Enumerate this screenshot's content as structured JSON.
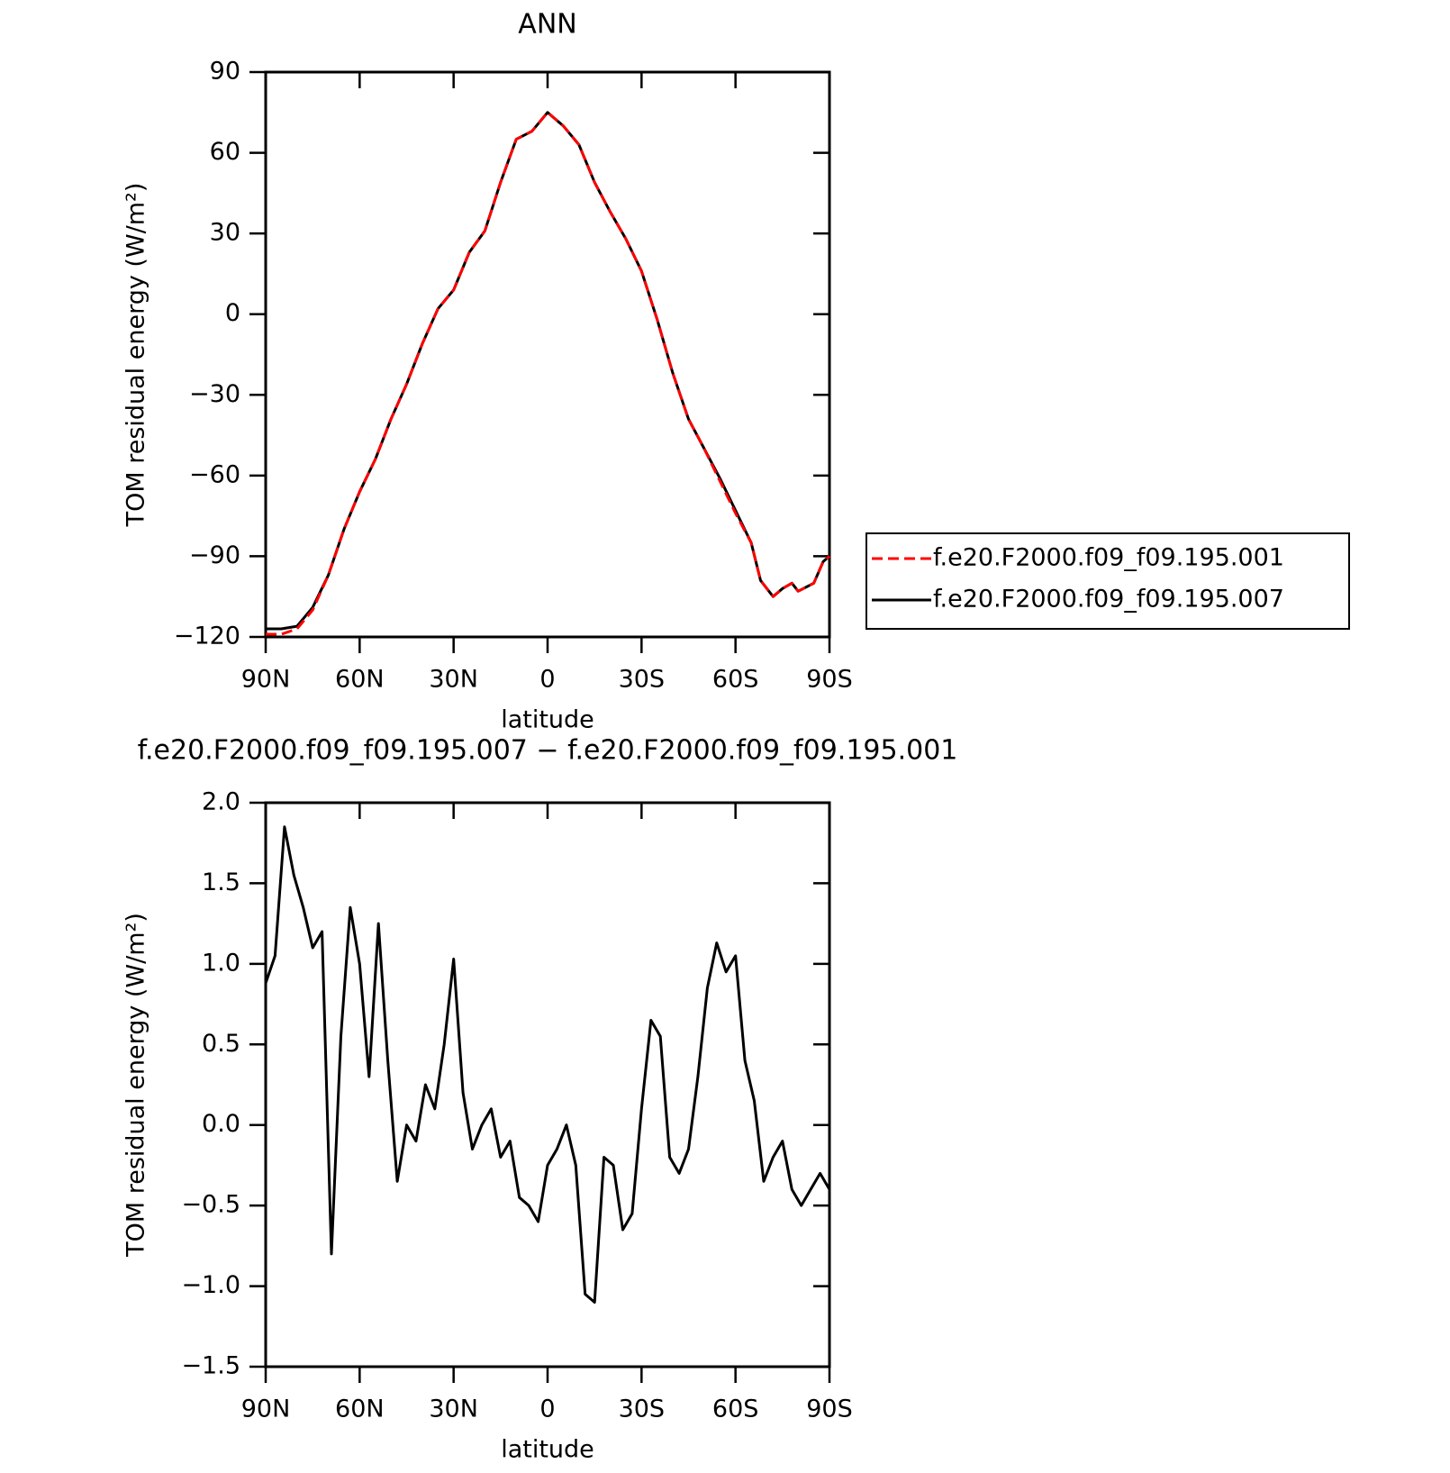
{
  "chart_data": [
    {
      "type": "line",
      "title": "ANN",
      "x_label": "latitude",
      "y_label": "TOM residual energy (W/m²)",
      "x": [
        90,
        85,
        80,
        75,
        70,
        65,
        60,
        55,
        50,
        45,
        40,
        35,
        30,
        25,
        20,
        15,
        10,
        5,
        0,
        -5,
        -10,
        -15,
        -20,
        -25,
        -30,
        -35,
        -40,
        -45,
        -50,
        -55,
        -60,
        -65,
        -68,
        -72,
        -75,
        -78,
        -80,
        -85,
        -88,
        -90
      ],
      "series": [
        {
          "name": "f.e20.F2000.f09_f09.195.001",
          "color": "#ff0000",
          "linestyle": "dashed",
          "values": [
            -119,
            -119,
            -117,
            -110,
            -97,
            -80,
            -66,
            -54,
            -39,
            -26,
            -11,
            2,
            9,
            23,
            31,
            49,
            65,
            68,
            75,
            70,
            63,
            49,
            38,
            28,
            16,
            -2,
            -22,
            -39,
            -50,
            -62,
            -74,
            -85,
            -99,
            -105,
            -102,
            -100,
            -103,
            -100,
            -92,
            -90
          ]
        },
        {
          "name": "f.e20.F2000.f09_f09.195.007",
          "color": "#000000",
          "linestyle": "solid",
          "values": [
            -117,
            -117,
            -116,
            -109,
            -97,
            -80,
            -66,
            -54,
            -39,
            -26,
            -11,
            2,
            9,
            23,
            31,
            49,
            65,
            68,
            75,
            70,
            63,
            49,
            38,
            28,
            16,
            -2,
            -22,
            -39,
            -50,
            -61,
            -73,
            -85,
            -99,
            -105,
            -102,
            -100,
            -103,
            -100,
            -92,
            -90
          ]
        }
      ],
      "xlim": [
        90,
        -90
      ],
      "xticks": [
        {
          "value": 90,
          "label": "90N"
        },
        {
          "value": 60,
          "label": "60N"
        },
        {
          "value": 30,
          "label": "30N"
        },
        0,
        {
          "value": -30,
          "label": "30S"
        },
        {
          "value": -60,
          "label": "60S"
        },
        {
          "value": -90,
          "label": "90S"
        }
      ],
      "ylim": [
        -120,
        90
      ],
      "yticks": [
        {
          "value": -120,
          "label": "−120"
        },
        {
          "value": -90,
          "label": "−90"
        },
        {
          "value": -60,
          "label": "−60"
        },
        {
          "value": -30,
          "label": "−30"
        },
        0,
        30,
        60,
        90
      ],
      "legend": "right"
    },
    {
      "type": "line",
      "title": "f.e20.F2000.f09_f09.195.007 − f.e20.F2000.f09_f09.195.001",
      "x_label": "latitude",
      "y_label": "TOM residual energy (W/m²)",
      "x": [
        90,
        87,
        84,
        81,
        78,
        75,
        72,
        69,
        66,
        63,
        60,
        57,
        54,
        51,
        48,
        45,
        42,
        39,
        36,
        33,
        30,
        27,
        24,
        21,
        18,
        15,
        12,
        9,
        6,
        3,
        0,
        -3,
        -6,
        -9,
        -12,
        -15,
        -18,
        -21,
        -24,
        -27,
        -30,
        -33,
        -36,
        -39,
        -42,
        -45,
        -48,
        -51,
        -54,
        -57,
        -60,
        -63,
        -66,
        -69,
        -72,
        -75,
        -78,
        -81,
        -84,
        -87,
        -90
      ],
      "series": [
        {
          "color": "#000000",
          "linestyle": "solid",
          "values": [
            0.88,
            1.05,
            1.85,
            1.55,
            1.35,
            1.1,
            1.2,
            -0.8,
            0.55,
            1.35,
            1.0,
            0.3,
            1.25,
            0.4,
            -0.35,
            0.0,
            -0.1,
            0.25,
            0.1,
            0.5,
            1.03,
            0.2,
            -0.15,
            0.0,
            0.1,
            -0.2,
            -0.1,
            -0.45,
            -0.5,
            -0.6,
            -0.25,
            -0.15,
            0.0,
            -0.25,
            -1.05,
            -1.1,
            -0.2,
            -0.25,
            -0.65,
            -0.55,
            0.1,
            0.65,
            0.55,
            -0.2,
            -0.3,
            -0.15,
            0.3,
            0.85,
            1.13,
            0.95,
            1.05,
            0.4,
            0.15,
            -0.35,
            -0.2,
            -0.1,
            -0.4,
            -0.5,
            -0.4,
            -0.3,
            -0.4
          ]
        }
      ],
      "xlim": [
        90,
        -90
      ],
      "xticks": [
        {
          "value": 90,
          "label": "90N"
        },
        {
          "value": 60,
          "label": "60N"
        },
        {
          "value": 30,
          "label": "30N"
        },
        0,
        {
          "value": -30,
          "label": "30S"
        },
        {
          "value": -60,
          "label": "60S"
        },
        {
          "value": -90,
          "label": "90S"
        }
      ],
      "ylim": [
        -1.5,
        2
      ],
      "yticks": [
        {
          "value": -1.5,
          "label": "−1.5"
        },
        {
          "value": -1,
          "label": "−1.0"
        },
        {
          "value": -0.5,
          "label": "−0.5"
        },
        {
          "value": 0,
          "label": "0.0"
        },
        0.5,
        {
          "value": 1,
          "label": "1.0"
        },
        1.5,
        {
          "value": 2,
          "label": "2.0"
        }
      ]
    }
  ]
}
